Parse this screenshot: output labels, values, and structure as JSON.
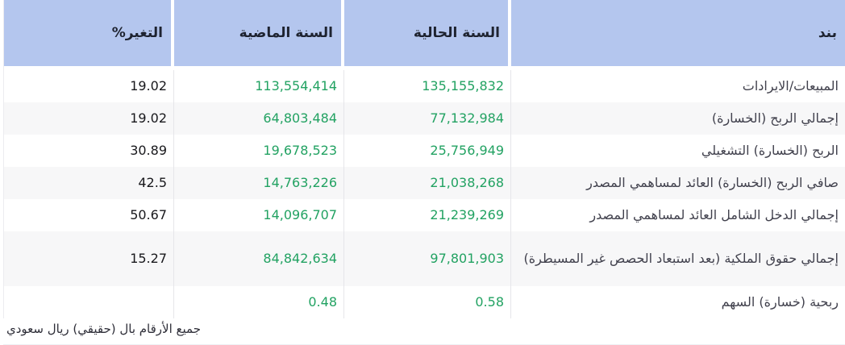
{
  "table": {
    "headers": {
      "item": "بند",
      "current_year": "السنة الحالية",
      "previous_year": "السنة الماضية",
      "change_pct": "التغير%"
    },
    "rows": [
      {
        "item": "المبيعات/الايرادات",
        "current": "135,155,832",
        "previous": "113,554,414",
        "change": "19.02"
      },
      {
        "item": "إجمالي الربح (الخسارة)",
        "current": "77,132,984",
        "previous": "64,803,484",
        "change": "19.02"
      },
      {
        "item": "الربح (الخسارة) التشغيلي",
        "current": "25,756,949",
        "previous": "19,678,523",
        "change": "30.89"
      },
      {
        "item": "صافي الربح (الخسارة) العائد لمساهمي المصدر",
        "current": "21,038,268",
        "previous": "14,763,226",
        "change": "42.5"
      },
      {
        "item": "إجمالي الدخل الشامل العائد لمساهمي المصدر",
        "current": "21,239,269",
        "previous": "14,096,707",
        "change": "50.67"
      },
      {
        "item": "إجمالي حقوق الملكية (بعد استبعاد الحصص غير المسيطرة)",
        "current": "97,801,903",
        "previous": "84,842,634",
        "change": "15.27"
      },
      {
        "item": "ربحية (خسارة) السهم",
        "current": "0.58",
        "previous": "0.48",
        "change": ""
      }
    ],
    "footnote": "جميع الأرقام بال (حقيقي) ريال سعودي",
    "colors": {
      "header_bg": "#b4c6ee",
      "header_text": "#1e2330",
      "value_green": "#22a262",
      "change_text": "#18181c",
      "item_text": "#41414d",
      "row_alt_bg": "#f7f7f8",
      "separator": "#e6e6ea"
    }
  }
}
